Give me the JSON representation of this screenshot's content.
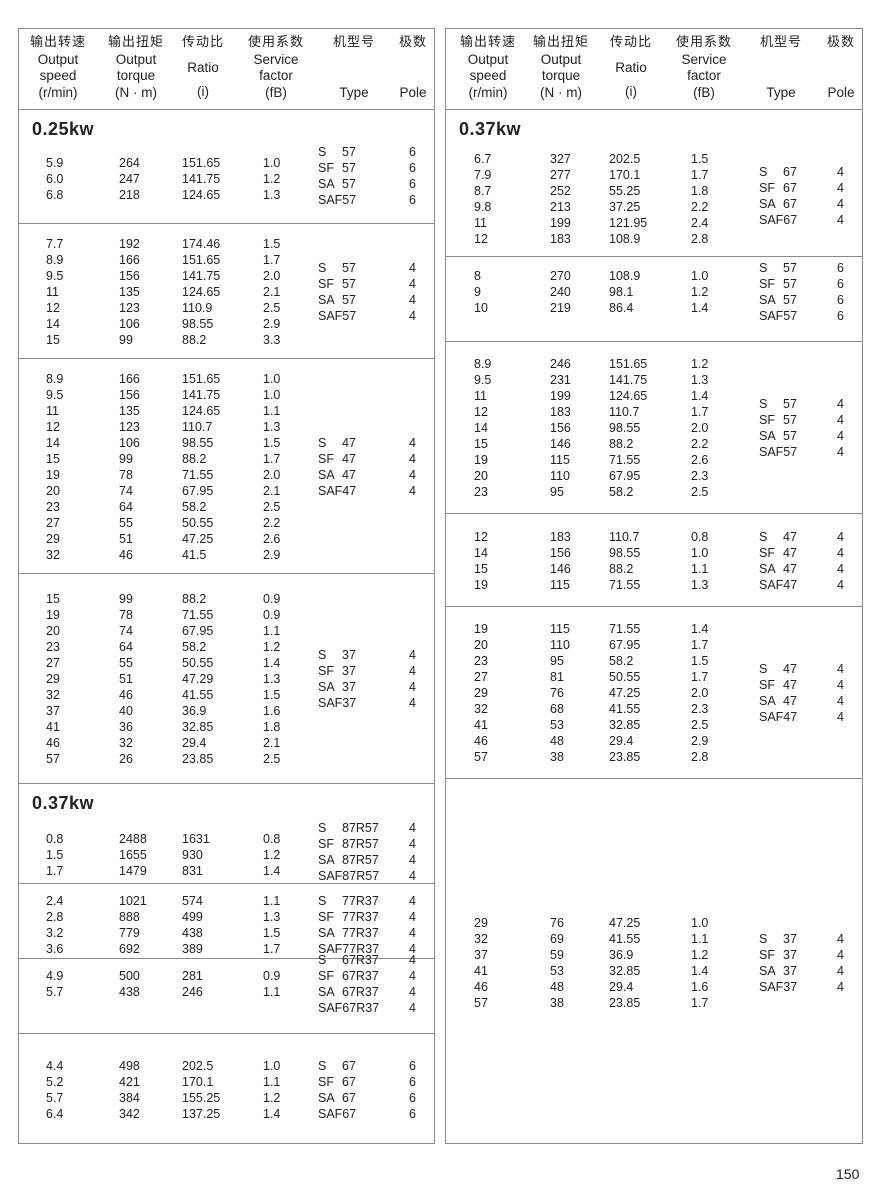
{
  "headers": [
    {
      "cn": "输出转速",
      "en": [
        "Output",
        "speed",
        "(r/min)"
      ]
    },
    {
      "cn": "输出扭矩",
      "en": [
        "Output",
        "torque",
        "(N · m)"
      ]
    },
    {
      "cn": "传动比",
      "en": [
        "Ratio",
        "(i)"
      ]
    },
    {
      "cn": "使用系数",
      "en": [
        "Service",
        "factor",
        "(fB)"
      ]
    },
    {
      "cn": "机型号",
      "en": [
        "Type"
      ]
    },
    {
      "cn": "极数",
      "en": [
        "Pole"
      ]
    }
  ],
  "left_panel": {
    "groups": [
      {
        "power": "0.25kw",
        "rows": [
          [
            "5.9",
            "264",
            "151.65",
            "1.0"
          ],
          [
            "6.0",
            "247",
            "141.75",
            "1.2"
          ],
          [
            "6.8",
            "218",
            "124.65",
            "1.3"
          ]
        ],
        "types": [
          "S 57",
          "SF 57",
          "SA 57",
          "SAF57"
        ],
        "poles": [
          "6",
          "6",
          "6",
          "6"
        ]
      },
      {
        "rows": [
          [
            "7.7",
            "192",
            "174.46",
            "1.5"
          ],
          [
            "8.9",
            "166",
            "151.65",
            "1.7"
          ],
          [
            "9.5",
            "156",
            "141.75",
            "2.0"
          ],
          [
            "11",
            "135",
            "124.65",
            "2.1"
          ],
          [
            "12",
            "123",
            "110.9",
            "2.5"
          ],
          [
            "14",
            "106",
            "98.55",
            "2.9"
          ],
          [
            "15",
            "99",
            "88.2",
            "3.3"
          ]
        ],
        "types": [
          "S 57",
          "SF 57",
          "SA 57",
          "SAF57"
        ],
        "poles": [
          "4",
          "4",
          "4",
          "4"
        ]
      },
      {
        "rows": [
          [
            "8.9",
            "166",
            "151.65",
            "1.0"
          ],
          [
            "9.5",
            "156",
            "141.75",
            "1.0"
          ],
          [
            "11",
            "135",
            "124.65",
            "1.1"
          ],
          [
            "12",
            "123",
            "110.7",
            "1.3"
          ],
          [
            "14",
            "106",
            "98.55",
            "1.5"
          ],
          [
            "15",
            "99",
            "88.2",
            "1.7"
          ],
          [
            "19",
            "78",
            "71.55",
            "2.0"
          ],
          [
            "20",
            "74",
            "67.95",
            "2.1"
          ],
          [
            "23",
            "64",
            "58.2",
            "2.5"
          ],
          [
            "27",
            "55",
            "50.55",
            "2.2"
          ],
          [
            "29",
            "51",
            "47.25",
            "2.6"
          ],
          [
            "32",
            "46",
            "41.5",
            "2.9"
          ]
        ],
        "types": [
          "S 47",
          "SF 47",
          "SA 47",
          "SAF47"
        ],
        "poles": [
          "4",
          "4",
          "4",
          "4"
        ]
      },
      {
        "rows": [
          [
            "15",
            "99",
            "88.2",
            "0.9"
          ],
          [
            "19",
            "78",
            "71.55",
            "0.9"
          ],
          [
            "20",
            "74",
            "67.95",
            "1.1"
          ],
          [
            "23",
            "64",
            "58.2",
            "1.2"
          ],
          [
            "27",
            "55",
            "50.55",
            "1.4"
          ],
          [
            "29",
            "51",
            "47.29",
            "1.3"
          ],
          [
            "32",
            "46",
            "41.55",
            "1.5"
          ],
          [
            "37",
            "40",
            "36.9",
            "1.6"
          ],
          [
            "41",
            "36",
            "32.85",
            "1.8"
          ],
          [
            "46",
            "32",
            "29.4",
            "2.1"
          ],
          [
            "57",
            "26",
            "23.85",
            "2.5"
          ]
        ],
        "types": [
          "S 37",
          "SF 37",
          "SA 37",
          "SAF37"
        ],
        "poles": [
          "4",
          "4",
          "4",
          "4"
        ]
      },
      {
        "power": "0.37kw",
        "rows": [
          [
            "0.8",
            "2488",
            "1631",
            "0.8"
          ],
          [
            "1.5",
            "1655",
            "930",
            "1.2"
          ],
          [
            "1.7",
            "1479",
            "831",
            "1.4"
          ]
        ],
        "types": [
          "S 87R57",
          "SF 87R57",
          "SA 87R57",
          "SAF87R57"
        ],
        "poles": [
          "4",
          "4",
          "4",
          "4"
        ]
      },
      {
        "rows": [
          [
            "2.4",
            "1021",
            "574",
            "1.1"
          ],
          [
            "2.8",
            "888",
            "499",
            "1.3"
          ],
          [
            "3.2",
            "779",
            "438",
            "1.5"
          ],
          [
            "3.6",
            "692",
            "389",
            "1.7"
          ]
        ],
        "types": [
          "S 77R37",
          "SF 77R37",
          "SA 77R37",
          "SAF77R37"
        ],
        "poles": [
          "4",
          "4",
          "4",
          "4"
        ]
      },
      {
        "rows": [
          [
            "4.9",
            "500",
            "281",
            "0.9"
          ],
          [
            "5.7",
            "438",
            "246",
            "1.1"
          ]
        ],
        "types": [
          "S 67R37",
          "SF 67R37",
          "SA 67R37",
          "SAF67R37"
        ],
        "poles": [
          "4",
          "4",
          "4",
          "4"
        ]
      },
      {
        "rows": [
          [
            "4.4",
            "498",
            "202.5",
            "1.0"
          ],
          [
            "5.2",
            "421",
            "170.1",
            "1.1"
          ],
          [
            "5.7",
            "384",
            "155.25",
            "1.2"
          ],
          [
            "6.4",
            "342",
            "137.25",
            "1.4"
          ]
        ],
        "types": [
          "S 67",
          "SF 67",
          "SA 67",
          "SAF67"
        ],
        "poles": [
          "6",
          "6",
          "6",
          "6"
        ]
      }
    ]
  },
  "right_panel": {
    "groups": [
      {
        "power": "0.37kw",
        "rows": [
          [
            "6.7",
            "327",
            "202.5",
            "1.5"
          ],
          [
            "7.9",
            "277",
            "170.1",
            "1.7"
          ],
          [
            "8.7",
            "252",
            "55.25",
            "1.8"
          ],
          [
            "9.8",
            "213",
            "37.25",
            "2.2"
          ],
          [
            "11",
            "199",
            "121.95",
            "2.4"
          ],
          [
            "12",
            "183",
            "108.9",
            "2.8"
          ]
        ],
        "types": [
          "S 67",
          "SF 67",
          "SA 67",
          "SAF67"
        ],
        "poles": [
          "4",
          "4",
          "4",
          "4"
        ]
      },
      {
        "rows": [
          [
            "8",
            "270",
            "108.9",
            "1.0"
          ],
          [
            "9",
            "240",
            "98.1",
            "1.2"
          ],
          [
            "10",
            "219",
            "86.4",
            "1.4"
          ]
        ],
        "types": [
          "S 57",
          "SF 57",
          "SA 57",
          "SAF57"
        ],
        "poles": [
          "6",
          "6",
          "6",
          "6"
        ]
      },
      {
        "rows": [
          [
            "8.9",
            "246",
            "151.65",
            "1.2"
          ],
          [
            "9.5",
            "231",
            "141.75",
            "1.3"
          ],
          [
            "11",
            "199",
            "124.65",
            "1.4"
          ],
          [
            "12",
            "183",
            "110.7",
            "1.7"
          ],
          [
            "14",
            "156",
            "98.55",
            "2.0"
          ],
          [
            "15",
            "146",
            "88.2",
            "2.2"
          ],
          [
            "19",
            "115",
            "71.55",
            "2.6"
          ],
          [
            "20",
            "110",
            "67.95",
            "2.3"
          ],
          [
            "23",
            "95",
            "58.2",
            "2.5"
          ]
        ],
        "types": [
          "S 57",
          "SF 57",
          "SA 57",
          "SAF57"
        ],
        "poles": [
          "4",
          "4",
          "4",
          "4"
        ]
      },
      {
        "rows": [
          [
            "12",
            "183",
            "110.7",
            "0.8"
          ],
          [
            "14",
            "156",
            "98.55",
            "1.0"
          ],
          [
            "15",
            "146",
            "88.2",
            "1.1"
          ],
          [
            "19",
            "115",
            "71.55",
            "1.3"
          ]
        ],
        "types": [
          "S 47",
          "SF 47",
          "SA 47",
          "SAF47"
        ],
        "poles": [
          "4",
          "4",
          "4",
          "4"
        ]
      },
      {
        "rows": [
          [
            "19",
            "115",
            "71.55",
            "1.4"
          ],
          [
            "20",
            "110",
            "67.95",
            "1.7"
          ],
          [
            "23",
            "95",
            "58.2",
            "1.5"
          ],
          [
            "27",
            "81",
            "50.55",
            "1.7"
          ],
          [
            "29",
            "76",
            "47.25",
            "2.0"
          ],
          [
            "32",
            "68",
            "41.55",
            "2.3"
          ],
          [
            "41",
            "53",
            "32.85",
            "2.5"
          ],
          [
            "46",
            "48",
            "29.4",
            "2.9"
          ],
          [
            "57",
            "38",
            "23.85",
            "2.8"
          ]
        ],
        "types": [
          "S 47",
          "SF 47",
          "SA 47",
          "SAF47"
        ],
        "poles": [
          "4",
          "4",
          "4",
          "4"
        ]
      },
      {
        "rows": [
          [
            "29",
            "76",
            "47.25",
            "1.0"
          ],
          [
            "32",
            "69",
            "41.55",
            "1.1"
          ],
          [
            "37",
            "59",
            "36.9",
            "1.2"
          ],
          [
            "41",
            "53",
            "32.85",
            "1.4"
          ],
          [
            "46",
            "48",
            "29.4",
            "1.6"
          ],
          [
            "57",
            "38",
            "23.85",
            "1.7"
          ]
        ],
        "types": [
          "S 37",
          "SF 37",
          "SA 37",
          "SAF37"
        ],
        "poles": [
          "4",
          "4",
          "4",
          "4"
        ]
      }
    ]
  },
  "page_number": "150"
}
